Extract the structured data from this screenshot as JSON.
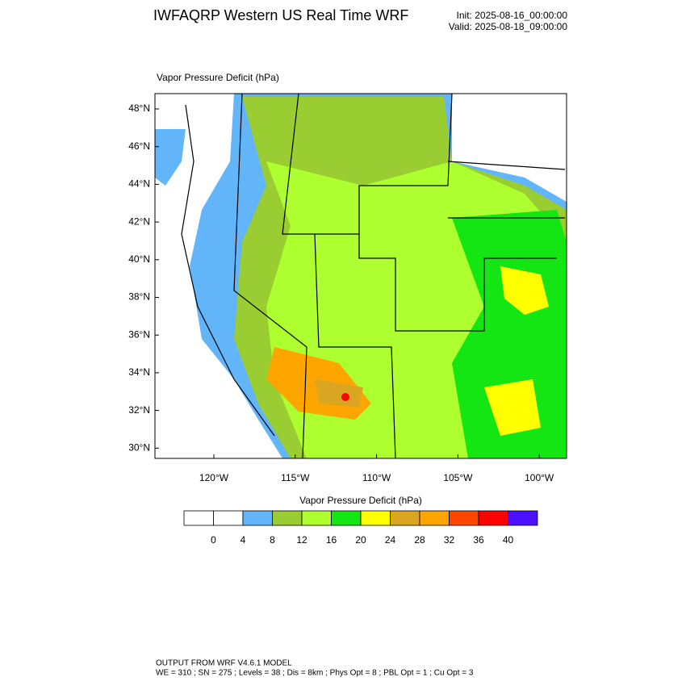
{
  "header": {
    "title": "IWFAQRP Western US Real Time WRF",
    "init": "Init: 2025-08-16_00:00:00",
    "valid": "Valid: 2025-08-18_09:00:00"
  },
  "map": {
    "title": "Vapor Pressure Deficit   (hPa)",
    "lat_labels": [
      "48°N",
      "46°N",
      "44°N",
      "42°N",
      "40°N",
      "38°N",
      "36°N",
      "34°N",
      "32°N",
      "30°N"
    ],
    "lon_labels": [
      "120°W",
      "115°W",
      "110°W",
      "105°W",
      "100°W"
    ]
  },
  "colorbar": {
    "title": "Vapor Pressure Deficit  (hPa)",
    "labels": [
      "0",
      "4",
      "8",
      "12",
      "16",
      "20",
      "24",
      "28",
      "32",
      "36",
      "40"
    ],
    "colors": [
      "#ffffff",
      "#ffffff",
      "#63b5fa",
      "#9acd32",
      "#adff2f",
      "#14e614",
      "#ffff00",
      "#daa520",
      "#ffa500",
      "#ff4500",
      "#ff0000",
      "#4b10ff"
    ]
  },
  "footer": {
    "line1": "OUTPUT FROM WRF V4.6.1 MODEL",
    "line2": "WE = 310 ; SN = 275 ; Levels = 38 ; Dis = 8km ; Phys Opt = 8 ; PBL Opt = 1 ; Cu Opt = 3"
  }
}
